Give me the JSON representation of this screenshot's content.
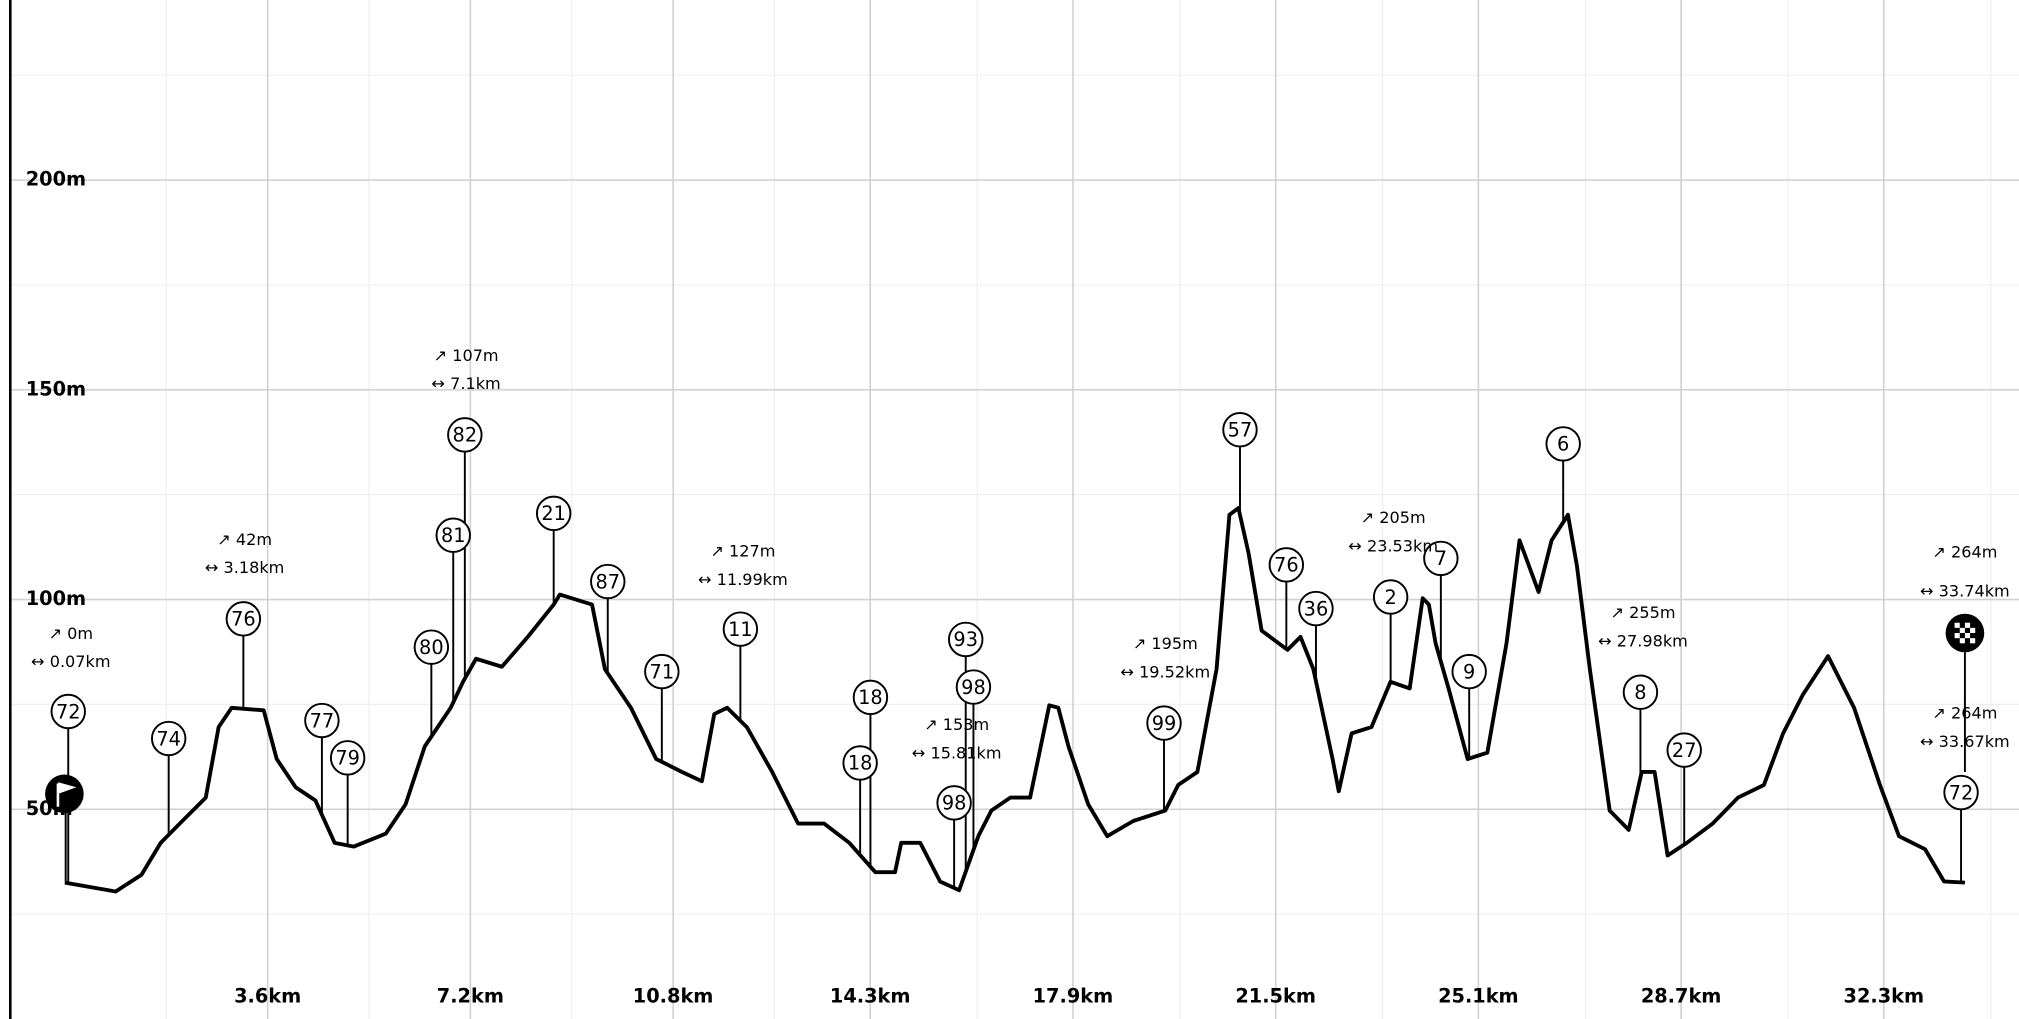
{
  "chart_data": {
    "type": "line",
    "x": [
      0,
      0.9,
      1.36,
      1.7,
      2.04,
      2.5,
      2.73,
      2.96,
      3.53,
      3.76,
      4.1,
      4.45,
      4.79,
      5.13,
      5.7,
      6.05,
      6.39,
      6.85,
      7.07,
      7.3,
      7.76,
      8.22,
      8.68,
      8.79,
      9.36,
      9.59,
      10.05,
      10.5,
      10.96,
      11.31,
      11.53,
      11.76,
      12.11,
      12.56,
      13.02,
      13.48,
      13.93,
      14.39,
      14.74,
      14.85,
      15.19,
      15.54,
      15.88,
      16.22,
      16.45,
      16.79,
      17.14,
      17.48,
      17.64,
      17.82,
      18.17,
      18.51,
      18.97,
      19.54,
      19.77,
      20.11,
      20.45,
      20.68,
      20.84,
      21.02,
      21.25,
      21.71,
      21.94,
      22.17,
      22.51,
      22.62,
      22.85,
      23.2,
      23.54,
      23.88,
      24.11,
      24.22,
      24.34,
      24.57,
      24.91,
      25.26,
      25.6,
      25.83,
      26.17,
      26.4,
      26.69,
      26.85,
      27.08,
      27.43,
      27.77,
      28.0,
      28.23,
      28.46,
      28.8,
      29.26,
      29.71,
      30.17,
      30.51,
      30.86,
      31.31,
      31.77,
      32.23,
      32.57,
      33.03,
      33.37,
      33.74
    ],
    "values": [
      32.5,
      30.4,
      34.4,
      42.0,
      46.6,
      52.8,
      69.6,
      74.2,
      73.6,
      62.0,
      55.2,
      52.1,
      42.0,
      41.1,
      44.2,
      51.2,
      65.0,
      74.2,
      80.4,
      85.9,
      84.0,
      91.1,
      98.8,
      101.2,
      98.8,
      83.4,
      74.2,
      62.0,
      58.9,
      56.7,
      72.7,
      74.2,
      69.6,
      58.9,
      46.6,
      46.6,
      42.0,
      35.0,
      35.0,
      42.0,
      42.0,
      32.8,
      30.7,
      43.6,
      49.7,
      52.8,
      52.8,
      74.8,
      74.2,
      65.0,
      51.2,
      43.6,
      47.2,
      49.7,
      55.8,
      58.9,
      83.4,
      120.2,
      121.8,
      111.0,
      92.6,
      88.0,
      91.1,
      83.4,
      62.0,
      54.3,
      68.1,
      69.6,
      80.4,
      78.8,
      100.3,
      98.8,
      89.6,
      78.8,
      62.0,
      63.5,
      89.6,
      114.1,
      101.8,
      114.1,
      120.2,
      108.0,
      83.4,
      49.7,
      45.1,
      58.9,
      58.9,
      39.0,
      42.0,
      46.6,
      52.8,
      55.8,
      68.1,
      77.3,
      86.5,
      74.2,
      55.8,
      43.6,
      40.5,
      32.8,
      32.5
    ],
    "color": "#000000",
    "xlim": [
      -0.97,
      34.7
    ],
    "ylim": [
      0,
      240
    ],
    "xticks": [
      {
        "value": 3.6,
        "label": "3.6km"
      },
      {
        "value": 7.2,
        "label": "7.2km"
      },
      {
        "value": 10.8,
        "label": "10.8km"
      },
      {
        "value": 14.3,
        "label": "14.3km"
      },
      {
        "value": 17.9,
        "label": "17.9km"
      },
      {
        "value": 21.5,
        "label": "21.5km"
      },
      {
        "value": 25.1,
        "label": "25.1km"
      },
      {
        "value": 28.7,
        "label": "28.7km"
      },
      {
        "value": 32.3,
        "label": "32.3km"
      }
    ],
    "yticks": [
      {
        "value": 50,
        "label": "50m"
      },
      {
        "value": 100,
        "label": "100m"
      },
      {
        "value": 150,
        "label": "150m"
      },
      {
        "value": 200,
        "label": "200m"
      }
    ],
    "grid": true,
    "waypoints": [
      "72",
      "74",
      "76",
      "77",
      "79",
      "80",
      "81",
      "82",
      "21",
      "87",
      "71",
      "11",
      "18",
      "18",
      "93",
      "98",
      "98",
      "99",
      "57",
      "76",
      "36",
      "2",
      "7",
      "9",
      "6",
      "8",
      "27",
      "72"
    ],
    "stats": [
      {
        "gain": "↗ 0m",
        "distance": "↔ 0.07km"
      },
      {
        "gain": "↗ 42m",
        "distance": "↔ 3.18km"
      },
      {
        "gain": "↗ 107m",
        "distance": "↔ 7.1km"
      },
      {
        "gain": "↗ 127m",
        "distance": "↔ 11.99km"
      },
      {
        "gain": "↗ 153m",
        "distance": "↔ 15.81km"
      },
      {
        "gain": "↗ 195m",
        "distance": "↔ 19.52km"
      },
      {
        "gain": "↗ 205m",
        "distance": "↔ 23.53km"
      },
      {
        "gain": "↗ 255m",
        "distance": "↔ 27.98km"
      },
      {
        "gain": "↗ 264m",
        "distance": "↔ 33.74km"
      },
      {
        "gain": "↗ 264m",
        "distance": "↔ 33.67km"
      }
    ]
  }
}
